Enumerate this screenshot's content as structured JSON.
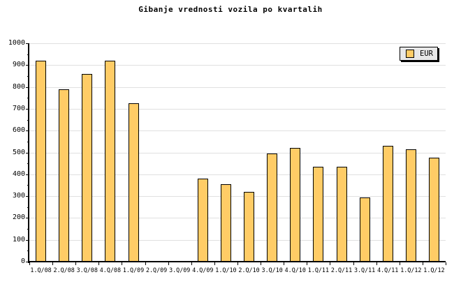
{
  "title": "Gibanje vrednosti vozila po kvartalih",
  "legend": {
    "label": "EUR",
    "swatch_color": "#FFCC66"
  },
  "colors": {
    "bar_fill": "#FFCC66",
    "bar_border": "#000000",
    "gridline": "#E0E0E0",
    "axis": "#000000",
    "background": "#FFFFFF",
    "legend_background": "#E8E8E8"
  },
  "chart_data": {
    "type": "bar",
    "title": "Gibanje vrednosti vozila po kvartalih",
    "categories": [
      "1.Q/08",
      "2.Q/08",
      "3.Q/08",
      "4.Q/08",
      "1.Q/09",
      "2.Q/09",
      "3.Q/09",
      "4.Q/09",
      "1.Q/10",
      "2.Q/10",
      "3.Q/10",
      "4.Q/10",
      "1.Q/11",
      "2.Q/11",
      "3.Q/11",
      "4.Q/11",
      "1.Q/12",
      "1.Q/12"
    ],
    "series": [
      {
        "name": "EUR",
        "values": [
          920,
          790,
          860,
          920,
          725,
          0,
          0,
          380,
          355,
          320,
          495,
          520,
          435,
          435,
          295,
          530,
          515,
          475
        ]
      }
    ],
    "xlabel": "",
    "ylabel": "",
    "ylim": [
      0,
      1000
    ],
    "ytick_step": 100,
    "ytick_labels": [
      "0",
      "100",
      "200",
      "300",
      "400",
      "500",
      "600",
      "700",
      "800",
      "900",
      "1000"
    ],
    "yminor_step": 50,
    "grid": true,
    "legend_position": "top-right",
    "legend_entries": [
      "EUR"
    ]
  }
}
